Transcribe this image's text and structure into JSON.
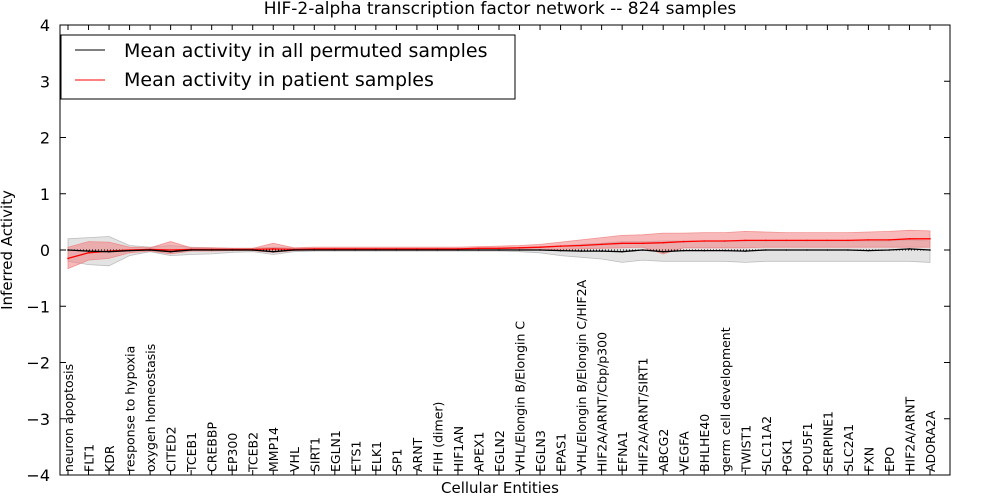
{
  "chart_data": {
    "type": "line",
    "title": "HIF-2-alpha transcription factor network -- 824 samples",
    "xlabel": "Cellular Entities",
    "ylabel": "Inferred Activity",
    "ylim": [
      -4,
      4
    ],
    "yticks": [
      -4,
      -3,
      -2,
      -1,
      0,
      1,
      2,
      3,
      4
    ],
    "ytick_labels": [
      "−4",
      "−3",
      "−2",
      "−1",
      "0",
      "1",
      "2",
      "3",
      "4"
    ],
    "legend_position": "top-left",
    "categories": [
      "neuron apoptosis",
      "FLT1",
      "KDR",
      "response to hypoxia",
      "oxygen homeostasis",
      "CITED2",
      "TCEB1",
      "CREBBP",
      "EP300",
      "TCEB2",
      "MMP14",
      "VHL",
      "SIRT1",
      "EGLN1",
      "ETS1",
      "ELK1",
      "SP1",
      "ARNT",
      "FIH (dimer)",
      "HIF1AN",
      "APEX1",
      "EGLN2",
      "VHL/Elongin B/Elongin C",
      "EGLN3",
      "EPAS1",
      "VHL/Elongin B/Elongin C/HIF2A",
      "HIF2A/ARNT/Cbp/p300",
      "EFNA1",
      "HIF2A/ARNT/SIRT1",
      "ABCG2",
      "VEGFA",
      "BHLHE40",
      "germ cell development",
      "TWIST1",
      "SLC11A2",
      "PGK1",
      "POU5F1",
      "SERPINE1",
      "SLC2A1",
      "FXN",
      "EPO",
      "HIF2A/ARNT",
      "ADORA2A"
    ],
    "series": [
      {
        "name": "Mean activity in all permuted samples",
        "color": "#000000",
        "band_color": "#b0b0b0",
        "values": [
          0.0,
          -0.02,
          -0.03,
          -0.01,
          0.0,
          -0.03,
          0.0,
          0.0,
          0.0,
          0.0,
          -0.03,
          0.0,
          0.0,
          0.0,
          0.0,
          0.0,
          0.0,
          0.0,
          0.0,
          0.0,
          0.0,
          0.0,
          0.0,
          0.0,
          -0.01,
          -0.02,
          -0.02,
          -0.03,
          0.0,
          -0.03,
          -0.01,
          -0.01,
          -0.01,
          -0.02,
          0.0,
          0.0,
          0.0,
          0.0,
          0.0,
          -0.01,
          0.0,
          0.02,
          0.0
        ],
        "lower": [
          -0.2,
          -0.26,
          -0.28,
          -0.1,
          -0.03,
          -0.1,
          -0.08,
          -0.07,
          -0.04,
          -0.03,
          -0.08,
          -0.03,
          -0.02,
          -0.02,
          -0.02,
          -0.02,
          -0.02,
          -0.02,
          -0.02,
          -0.02,
          -0.02,
          -0.02,
          -0.03,
          -0.05,
          -0.1,
          -0.13,
          -0.16,
          -0.22,
          -0.18,
          -0.2,
          -0.2,
          -0.2,
          -0.2,
          -0.22,
          -0.2,
          -0.2,
          -0.2,
          -0.2,
          -0.2,
          -0.2,
          -0.2,
          -0.2,
          -0.22
        ],
        "upper": [
          0.2,
          0.22,
          0.24,
          0.08,
          0.05,
          0.08,
          0.05,
          0.04,
          0.03,
          0.03,
          0.05,
          0.03,
          0.02,
          0.02,
          0.02,
          0.02,
          0.02,
          0.02,
          0.02,
          0.02,
          0.02,
          0.02,
          0.03,
          0.05,
          0.07,
          0.1,
          0.12,
          0.15,
          0.15,
          0.16,
          0.16,
          0.16,
          0.16,
          0.16,
          0.16,
          0.16,
          0.16,
          0.16,
          0.16,
          0.16,
          0.16,
          0.18,
          0.16
        ]
      },
      {
        "name": "Mean activity in patient samples",
        "color": "#ff0000",
        "band_color": "#f08080",
        "values": [
          -0.15,
          -0.05,
          -0.02,
          0.0,
          0.01,
          0.0,
          0.01,
          0.01,
          0.01,
          0.01,
          0.02,
          0.01,
          0.02,
          0.02,
          0.02,
          0.02,
          0.02,
          0.02,
          0.02,
          0.02,
          0.03,
          0.03,
          0.04,
          0.05,
          0.07,
          0.08,
          0.1,
          0.12,
          0.12,
          0.13,
          0.15,
          0.16,
          0.16,
          0.17,
          0.17,
          0.17,
          0.17,
          0.17,
          0.17,
          0.18,
          0.18,
          0.2,
          0.2
        ],
        "lower": [
          -0.33,
          -0.18,
          -0.15,
          -0.05,
          -0.02,
          -0.07,
          -0.02,
          -0.02,
          -0.01,
          -0.01,
          -0.04,
          -0.01,
          0.0,
          0.0,
          0.0,
          0.0,
          0.0,
          0.0,
          0.0,
          0.0,
          0.0,
          0.0,
          0.0,
          0.0,
          0.01,
          0.02,
          0.03,
          0.04,
          0.05,
          -0.07,
          0.04,
          0.04,
          0.04,
          0.04,
          0.05,
          0.05,
          0.05,
          0.05,
          0.05,
          0.05,
          0.05,
          0.05,
          0.05
        ],
        "upper": [
          0.05,
          0.15,
          0.14,
          0.05,
          0.04,
          0.15,
          0.04,
          0.04,
          0.03,
          0.03,
          0.12,
          0.04,
          0.05,
          0.05,
          0.05,
          0.05,
          0.05,
          0.05,
          0.05,
          0.05,
          0.06,
          0.07,
          0.08,
          0.1,
          0.14,
          0.18,
          0.22,
          0.26,
          0.27,
          0.3,
          0.3,
          0.31,
          0.31,
          0.33,
          0.32,
          0.31,
          0.31,
          0.31,
          0.31,
          0.32,
          0.33,
          0.35,
          0.34
        ]
      }
    ]
  }
}
